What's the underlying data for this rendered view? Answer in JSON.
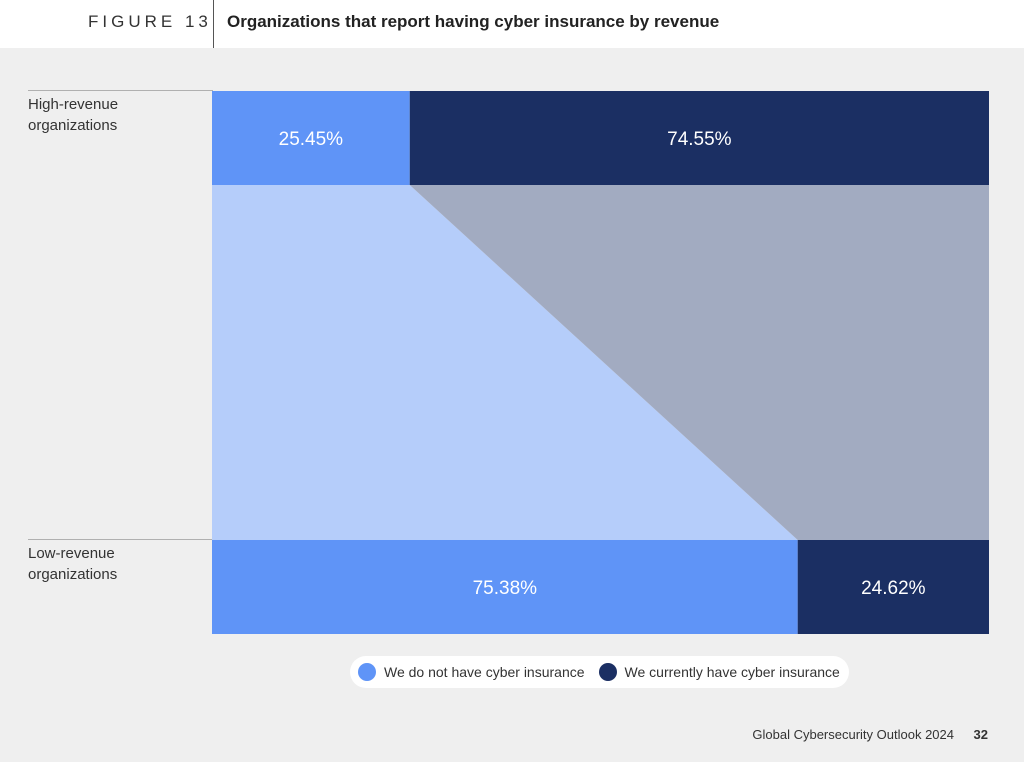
{
  "header": {
    "figure_label": "FIGURE 13",
    "title": "Organizations that report having cyber insurance by revenue"
  },
  "chart_data": {
    "type": "bar",
    "orientation": "horizontal",
    "stacked": true,
    "percent": true,
    "categories": [
      "High-revenue organizations",
      "Low-revenue organizations"
    ],
    "series": [
      {
        "name": "We do not have cyber insurance",
        "values": [
          25.45,
          75.38
        ]
      },
      {
        "name": "We currently have cyber insurance",
        "values": [
          74.55,
          24.62
        ]
      }
    ],
    "value_labels": [
      [
        "25.45%",
        "74.55%"
      ],
      [
        "75.38%",
        "24.62%"
      ]
    ],
    "legend_position": "bottom",
    "colors": {
      "no_insurance": "#5f94f7",
      "has_insurance": "#1b2f63",
      "no_insurance_connector": "#b5cdfa",
      "has_insurance_connector": "#a2abc1"
    }
  },
  "rows": [
    {
      "label_line1": "High-revenue",
      "label_line2": "organizations"
    },
    {
      "label_line1": "Low-revenue",
      "label_line2": "organizations"
    }
  ],
  "legend": {
    "items": [
      {
        "label": "We do not have cyber insurance"
      },
      {
        "label": "We currently have cyber insurance"
      }
    ]
  },
  "footer": {
    "publication": "Global Cybersecurity Outlook 2024",
    "page_number": "32"
  }
}
